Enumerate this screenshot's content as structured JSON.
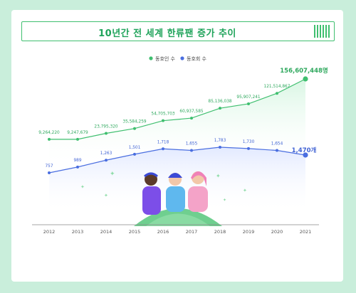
{
  "title": "10년간 전 세계 한류팬 증가 추이",
  "colors": {
    "background": "#c9eedb",
    "green": "#3fbf6f",
    "green_label": "#2ea85d",
    "blue": "#4a6ee0",
    "blue_label": "#4163d4",
    "axis": "#7a7a7a",
    "ground": "#6fcf8f"
  },
  "chart_data": {
    "type": "line",
    "categories": [
      "2012",
      "2013",
      "2014",
      "2015",
      "2016",
      "2017",
      "2018",
      "2019",
      "2020",
      "2021"
    ],
    "series": [
      {
        "name": "동호인 수",
        "color": "#3fbf6f",
        "values": [
          9264220,
          9247679,
          23795320,
          35584259,
          54705703,
          60937585,
          85136038,
          95907241,
          121514867,
          156607448
        ],
        "labels": [
          "9,264,220",
          "9,247,679",
          "23,795,320",
          "35,584,259",
          "54,705,703",
          "60,937,585",
          "85,136,038",
          "95,907,241",
          "121,514,867",
          "156,607,448명"
        ]
      },
      {
        "name": "동호회 수",
        "color": "#4a6ee0",
        "values": [
          757,
          989,
          1263,
          1501,
          1718,
          1655,
          1783,
          1730,
          1654,
          1470
        ],
        "labels": [
          "757",
          "989",
          "1,263",
          "1,501",
          "1,718",
          "1,655",
          "1,783",
          "1,730",
          "1,654",
          "1,470개"
        ]
      }
    ],
    "legend_position": "top-center",
    "grid": false
  }
}
